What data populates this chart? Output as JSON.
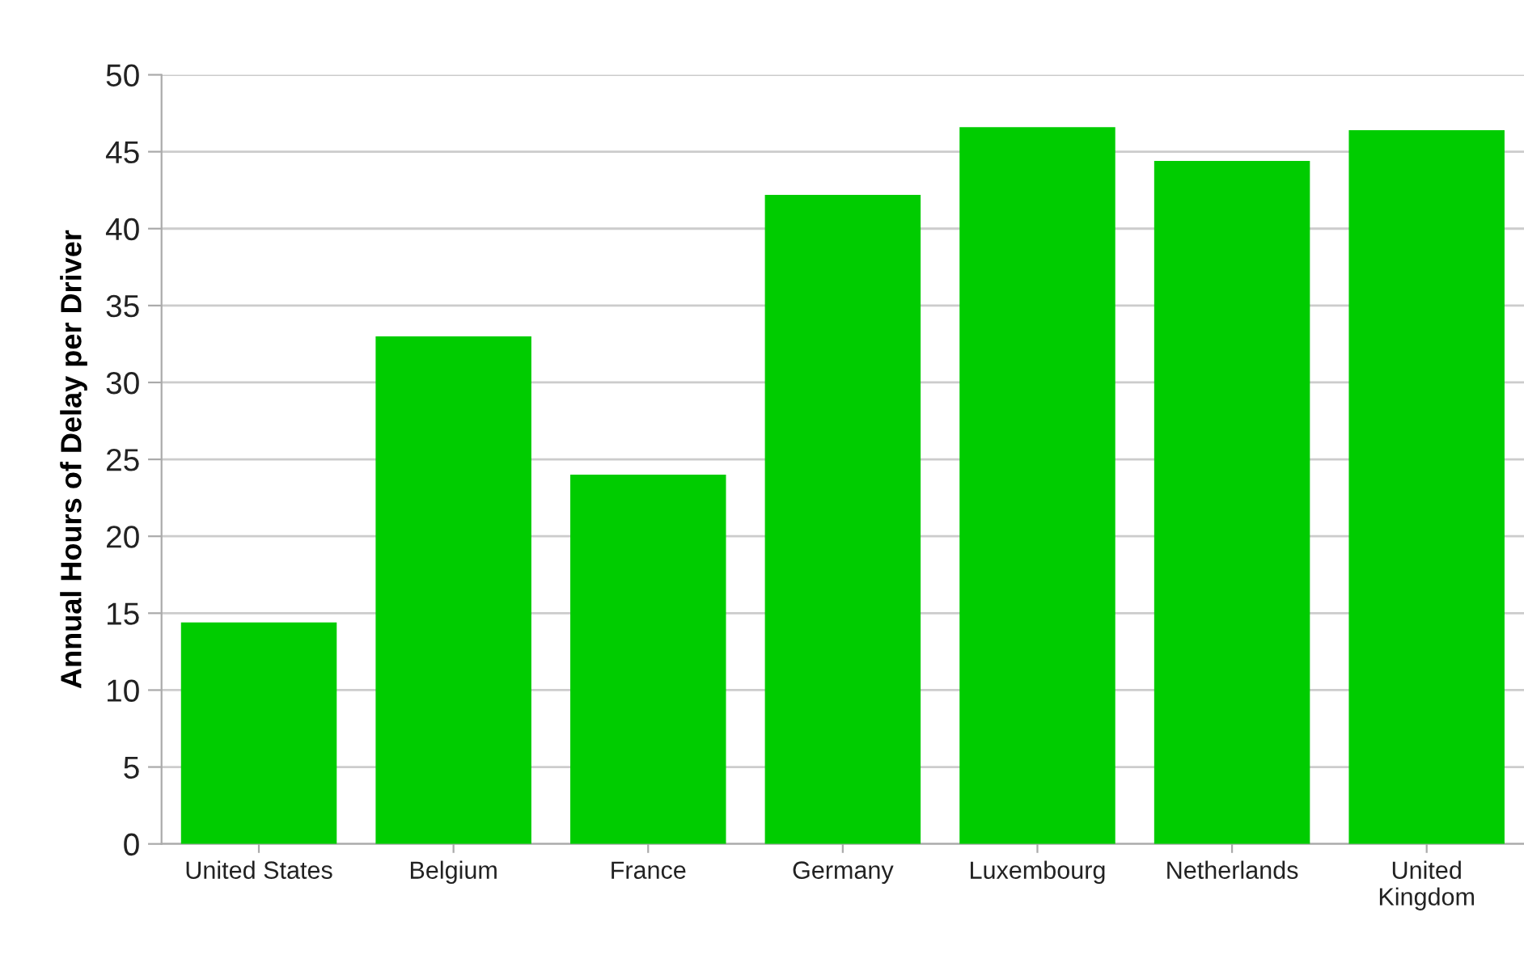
{
  "chart_data": {
    "type": "bar",
    "ylabel": "Annual Hours of Delay per Driver",
    "categories": [
      "United States",
      "Belgium",
      "France",
      "Germany",
      "Luxembourg",
      "Netherlands",
      "United\nKingdom"
    ],
    "values": [
      14.4,
      33.0,
      24.0,
      42.2,
      46.6,
      44.4,
      46.4
    ],
    "color": "#00cc00",
    "ylim": [
      0,
      50
    ],
    "yticks": [
      0,
      5,
      10,
      15,
      20,
      25,
      30,
      35,
      40,
      45,
      50
    ],
    "grid": "y"
  }
}
